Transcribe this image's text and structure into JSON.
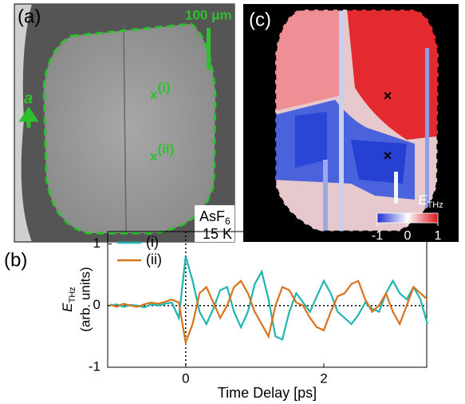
{
  "panel_a": {
    "label": "(a)",
    "scale_bar": "100 μm",
    "axis_letter": "a",
    "marker_1": "x",
    "marker_1_sup": "(i)",
    "marker_2": "x",
    "marker_2_sup": "(ii)",
    "sample": "AsF",
    "sample_sub": "6",
    "temperature": "15 K"
  },
  "panel_c": {
    "label": "(c)",
    "colorbar": {
      "label": "E",
      "label_sub": "THz",
      "lim": [
        -1,
        1
      ],
      "ticks": [
        -1,
        0,
        1
      ]
    }
  },
  "chart_data": {
    "type": "line",
    "panel_label": "(b)",
    "xlabel": "Time Delay [ps]",
    "ylabel": "E",
    "ylabel_sub": "THz",
    "ylabel_units": "(arb. units)",
    "xlim": [
      -1.13,
      3.49
    ],
    "ylim": [
      -1,
      1.2
    ],
    "xticks": [
      0,
      2
    ],
    "yticks": [
      -1,
      0,
      1
    ],
    "reference_lines": {
      "x": 0,
      "y": 0
    },
    "legend": "upper left",
    "x": [
      -1.1,
      -1.0,
      -0.9,
      -0.8,
      -0.7,
      -0.6,
      -0.5,
      -0.4,
      -0.3,
      -0.2,
      -0.1,
      0,
      0.1,
      0.2,
      0.3,
      0.4,
      0.5,
      0.6,
      0.7,
      0.8,
      0.9,
      1.0,
      1.1,
      1.2,
      1.3,
      1.4,
      1.5,
      1.6,
      1.7,
      1.8,
      1.9,
      2.0,
      2.1,
      2.2,
      2.3,
      2.4,
      2.5,
      2.6,
      2.7,
      2.8,
      2.9,
      3.0,
      3.1,
      3.2,
      3.3,
      3.4,
      3.5
    ],
    "series": [
      {
        "name": "(i)",
        "color": "#1fb5b0",
        "values": [
          0,
          0.02,
          -0.02,
          0.01,
          0,
          -0.03,
          0.02,
          0,
          0.03,
          0.05,
          -0.2,
          0.8,
          0.4,
          -0.1,
          -0.3,
          -0.05,
          0.25,
          0.3,
          -0.1,
          -0.35,
          -0.1,
          0.35,
          0.55,
          0.1,
          -0.5,
          -0.55,
          -0.1,
          0.2,
          0.05,
          -0.1,
          0.15,
          0.4,
          0.2,
          -0.1,
          -0.2,
          -0.3,
          -0.15,
          0.05,
          -0.05,
          -0.1,
          0.2,
          0.4,
          0.2,
          0.1,
          0.3,
          0.1,
          -0.3
        ]
      },
      {
        "name": "(ii)",
        "color": "#d9731b",
        "values": [
          0.02,
          -0.02,
          0.03,
          0,
          -0.02,
          0.02,
          0.05,
          0.03,
          0.06,
          0.1,
          0.05,
          -0.6,
          -0.3,
          0.2,
          0.3,
          0.05,
          -0.2,
          0.0,
          0.3,
          0.4,
          0.2,
          -0.1,
          -0.3,
          -0.5,
          0.0,
          0.3,
          0.25,
          0.05,
          0.0,
          -0.2,
          -0.35,
          -0.4,
          -0.1,
          0.15,
          0.2,
          0.35,
          0.4,
          0.1,
          -0.1,
          0.0,
          0.2,
          -0.1,
          -0.3,
          0.0,
          0.3,
          0.2,
          0.1
        ]
      }
    ]
  }
}
